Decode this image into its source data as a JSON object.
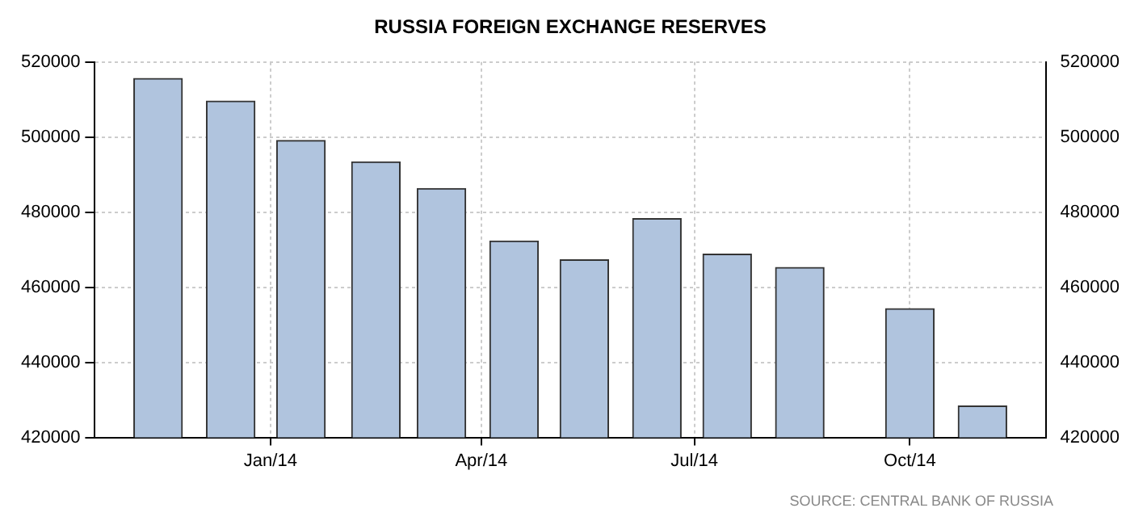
{
  "chart_data": {
    "type": "bar",
    "title": "RUSSIA FOREIGN EXCHANGE RESERVES",
    "x": [
      "2013-11-14",
      "2013-12-15",
      "2014-01-14",
      "2014-02-15",
      "2014-03-15",
      "2014-04-15",
      "2014-05-15",
      "2014-06-15",
      "2014-07-15",
      "2014-08-15",
      "2014-10-01",
      "2014-11-01"
    ],
    "values": [
      515600,
      509600,
      499100,
      493400,
      486300,
      472300,
      467300,
      478300,
      468800,
      465300,
      454300,
      428400
    ],
    "color": "#b0c4de",
    "xlim": [
      "2013-10-18",
      "2014-11-28"
    ],
    "xticks": [
      {
        "value": "2014-01-01",
        "label": "Jan/14"
      },
      {
        "value": "2014-04-01",
        "label": "Apr/14"
      },
      {
        "value": "2014-07-01",
        "label": "Jul/14"
      },
      {
        "value": "2014-10-01",
        "label": "Oct/14"
      }
    ],
    "ylim": [
      420000,
      520000
    ],
    "yticks": [
      420000,
      440000,
      460000,
      480000,
      500000,
      520000
    ],
    "y2lim": [
      420000,
      520000
    ],
    "y2ticks": [
      420000,
      440000,
      460000,
      480000,
      500000,
      520000
    ],
    "grid": true,
    "legend": false,
    "annotations": [
      "SOURCE: CENTRAL BANK OF RUSSIA"
    ]
  }
}
